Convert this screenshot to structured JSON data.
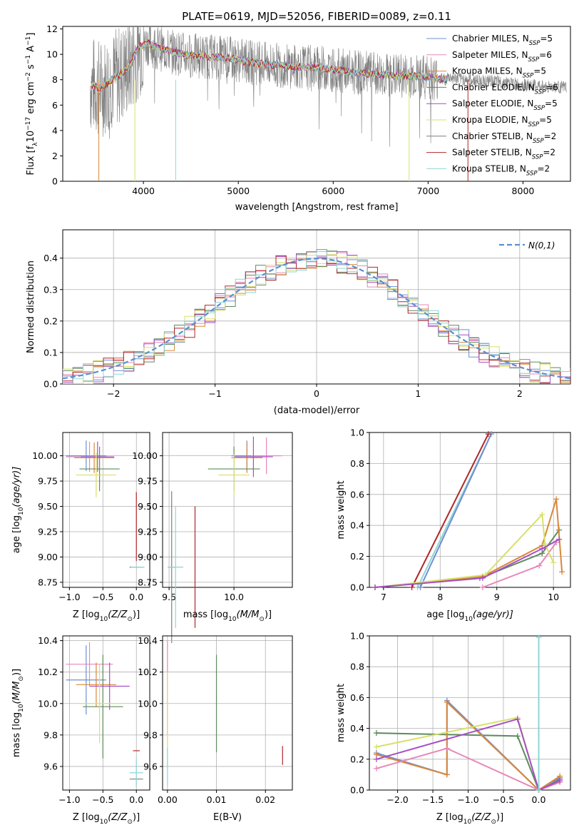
{
  "title": "PLATE=0619, MJD=52056, FIBERID=0089, z=0.11",
  "colors": {
    "blue": "#6f8fd0",
    "pink": "#e887b8",
    "orange": "#d9873a",
    "olive": "#5e8a5e",
    "purple": "#a64fc4",
    "yellow": "#d8e06a",
    "grey": "#7f7f7f",
    "red": "#b0272a",
    "cyan": "#8dd6d6",
    "gauss": "#5b8fd0"
  },
  "legend": [
    {
      "label": "Chabrier MILES, N",
      "sub": "SSP",
      "tail": "=5",
      "color": "#6f8fd0"
    },
    {
      "label": "Salpeter MILES, N",
      "sub": "SSP",
      "tail": "=6",
      "color": "#e887b8"
    },
    {
      "label": "Kroupa MILES, N",
      "sub": "SSP",
      "tail": "=5",
      "color": "#d9873a"
    },
    {
      "label": "Chabrier ELODIE, N",
      "sub": "SSP",
      "tail": "=6",
      "color": "#5e8a5e"
    },
    {
      "label": "Salpeter ELODIE, N",
      "sub": "SSP",
      "tail": "=5",
      "color": "#a64fc4"
    },
    {
      "label": "Kroupa ELODIE, N",
      "sub": "SSP",
      "tail": "=5",
      "color": "#d8e06a"
    },
    {
      "label": "Chabrier STELIB, N",
      "sub": "SSP",
      "tail": "=2",
      "color": "#7f7f7f"
    },
    {
      "label": "Salpeter STELIB, N",
      "sub": "SSP",
      "tail": "=2",
      "color": "#b0272a"
    },
    {
      "label": "Kroupa STELIB, N",
      "sub": "SSP",
      "tail": "=2",
      "color": "#8dd6d6"
    }
  ],
  "chart_data": [
    {
      "type": "line",
      "ylabel_parts": [
        "Flux [f",
        "λ",
        "10",
        "−17",
        " erg cm",
        "−2",
        " s",
        "−1",
        " A",
        "−1",
        "]"
      ],
      "xlabel": "wavelength [Angstrom, rest frame]",
      "xlim": [
        3150,
        8500
      ],
      "ylim": [
        0,
        12.2
      ],
      "xticks": [
        4000,
        5000,
        6000,
        7000,
        8000
      ],
      "yticks": [
        0,
        2,
        4,
        6,
        8,
        10,
        12
      ],
      "model_continuum": {
        "x": [
          3450,
          3550,
          3650,
          3750,
          3850,
          3950,
          4050,
          4150,
          4300,
          4500,
          4700,
          4900,
          5100,
          5300,
          5500,
          5700,
          5900,
          6100,
          6300,
          6500,
          6700,
          6900,
          7100,
          7200
        ],
        "y": [
          7.6,
          7.3,
          7.9,
          8.4,
          9.0,
          10.6,
          10.9,
          10.5,
          10.2,
          9.9,
          9.8,
          9.7,
          9.4,
          9.2,
          9.1,
          9.0,
          8.9,
          8.7,
          8.5,
          8.4,
          8.3,
          8.3,
          8.1,
          8.0
        ]
      },
      "data_continuum": {
        "x": [
          7200,
          7400,
          7600,
          7800,
          8000,
          8200,
          8450
        ],
        "y": [
          8.2,
          8.0,
          7.9,
          7.8,
          7.6,
          7.5,
          7.4
        ]
      }
    },
    {
      "type": "histogram",
      "xlabel": "(data-model)/error",
      "ylabel": "Normed distribution",
      "xlim": [
        -2.5,
        2.5
      ],
      "ylim": [
        0,
        0.49
      ],
      "xticks": [
        -2,
        -1,
        0,
        1,
        2
      ],
      "yticks": [
        0.0,
        0.1,
        0.2,
        0.3,
        0.4
      ],
      "legend_label": "N(0,1)",
      "bin_width": 0.1,
      "reference_curve": "normal(0,1)"
    },
    {
      "type": "errorbar",
      "xlabel_parts": [
        "Z [log",
        "10",
        "(Z/Z",
        "⊙",
        ")]"
      ],
      "ylabel_parts": [
        "age  [log",
        "10",
        "(age/yr)]"
      ],
      "xlim": [
        -1.1,
        0.2
      ],
      "ylim": [
        8.7,
        10.23
      ],
      "xticks": [
        -1.0,
        -0.5,
        0.0
      ],
      "yticks": [
        8.75,
        9.0,
        9.25,
        9.5,
        9.75,
        10.0
      ],
      "points": [
        {
          "x": -0.75,
          "y": 10.0,
          "xerr": 0.3,
          "yerr": 0.15,
          "color": "#6f8fd0"
        },
        {
          "x": -0.7,
          "y": 9.99,
          "xerr": 0.35,
          "yerr": 0.15,
          "color": "#e887b8"
        },
        {
          "x": -0.63,
          "y": 9.98,
          "xerr": 0.3,
          "yerr": 0.15,
          "color": "#d9873a"
        },
        {
          "x": -0.55,
          "y": 9.87,
          "xerr": 0.3,
          "yerr": 0.22,
          "color": "#5e8a5e"
        },
        {
          "x": -0.58,
          "y": 9.99,
          "xerr": 0.25,
          "yerr": 0.15,
          "color": "#a64fc4"
        },
        {
          "x": -0.6,
          "y": 9.81,
          "xerr": 0.3,
          "yerr": 0.22,
          "color": "#d8e06a"
        },
        {
          "x": 0.0,
          "y": 8.9,
          "xerr": 0.1,
          "yerr": 0.0,
          "color": "#7f7f7f"
        },
        {
          "x": 0.0,
          "y": 9.3,
          "xerr": 0.0,
          "yerr": 0.34,
          "color": "#b0272a"
        },
        {
          "x": 0.02,
          "y": 8.9,
          "xerr": 0.1,
          "yerr": 0.0,
          "color": "#8dd6d6"
        }
      ]
    },
    {
      "type": "errorbar",
      "xlabel_parts": [
        "mass [log",
        "10",
        "(M/M",
        "⊙",
        ")]"
      ],
      "ylabel_parts": [
        "",
        "",
        ""
      ],
      "xlim": [
        9.45,
        10.45
      ],
      "ylim": [
        8.7,
        10.23
      ],
      "xticks": [
        9.5,
        10.0
      ],
      "yticks": [
        8.75,
        9.0,
        9.25,
        9.5,
        9.75,
        10.0
      ],
      "points": [
        {
          "x": 10.1,
          "y": 10.0,
          "xerr": 0.12,
          "yerr": 0.15,
          "color": "#6f8fd0"
        },
        {
          "x": 10.25,
          "y": 10.0,
          "xerr": 0.12,
          "yerr": 0.18,
          "color": "#e887b8"
        },
        {
          "x": 10.1,
          "y": 9.98,
          "xerr": 0.12,
          "yerr": 0.15,
          "color": "#d9873a"
        },
        {
          "x": 10.0,
          "y": 9.87,
          "xerr": 0.2,
          "yerr": 0.22,
          "color": "#5e8a5e"
        },
        {
          "x": 10.15,
          "y": 9.99,
          "xerr": 0.15,
          "yerr": 0.2,
          "color": "#a64fc4"
        },
        {
          "x": 10.0,
          "y": 9.81,
          "xerr": 0.12,
          "yerr": 0.2,
          "color": "#d8e06a"
        },
        {
          "x": 9.52,
          "y": 8.9,
          "xerr": 0.03,
          "yerr": 0.75,
          "color": "#7f7f7f"
        },
        {
          "x": 9.7,
          "y": 8.9,
          "xerr": 0.0,
          "yerr": 0.6,
          "color": "#b0272a"
        },
        {
          "x": 9.55,
          "y": 8.9,
          "xerr": 0.06,
          "yerr": 0.6,
          "color": "#8dd6d6"
        }
      ]
    },
    {
      "type": "line",
      "xlabel_parts": [
        "age  [log",
        "10",
        "(age/yr)]"
      ],
      "ylabel": "mass weight",
      "xlim": [
        6.75,
        10.3
      ],
      "ylim": [
        0,
        1.0
      ],
      "xticks": [
        7,
        8,
        9,
        10
      ],
      "yticks": [
        0.0,
        0.2,
        0.4,
        0.6,
        0.8,
        1.0
      ],
      "series": [
        {
          "color": "#8dd6d6",
          "x": [
            7.6,
            8.9
          ],
          "y": [
            0.0,
            0.99
          ]
        },
        {
          "color": "#6f8fd0",
          "x": [
            7.65,
            8.9
          ],
          "y": [
            0.0,
            0.99
          ]
        },
        {
          "color": "#b0272a",
          "x": [
            7.5,
            8.85
          ],
          "y": [
            0.0,
            0.99
          ]
        },
        {
          "color": "#5e8a5e",
          "x": [
            6.85,
            8.7,
            9.8,
            10.1
          ],
          "y": [
            0.0,
            0.06,
            0.22,
            0.37
          ]
        },
        {
          "color": "#d9873a",
          "x": [
            6.85,
            8.75,
            9.8,
            10.05,
            10.15
          ],
          "y": [
            0.0,
            0.07,
            0.27,
            0.57,
            0.1
          ]
        },
        {
          "color": "#e887b8",
          "x": [
            8.75,
            9.75,
            10.05
          ],
          "y": [
            0.0,
            0.14,
            0.29
          ]
        },
        {
          "color": "#d8e06a",
          "x": [
            6.85,
            8.8,
            9.8,
            9.85,
            10.0
          ],
          "y": [
            0.0,
            0.08,
            0.47,
            0.28,
            0.16
          ]
        },
        {
          "color": "#a64fc4",
          "x": [
            6.85,
            8.75,
            9.8,
            10.1
          ],
          "y": [
            0.0,
            0.06,
            0.25,
            0.31
          ]
        }
      ]
    },
    {
      "type": "errorbar",
      "xlabel_parts": [
        "Z [log",
        "10",
        "(Z/Z",
        "⊙",
        ")]"
      ],
      "ylabel_parts": [
        "mass [log",
        "10",
        "(M/M",
        "⊙",
        ")]"
      ],
      "xlim": [
        -1.1,
        0.2
      ],
      "ylim": [
        9.45,
        10.43
      ],
      "xticks": [
        -1.0,
        -0.5,
        0.0
      ],
      "yticks": [
        9.6,
        9.8,
        10.0,
        10.2,
        10.4
      ],
      "points": [
        {
          "x": -0.75,
          "y": 10.15,
          "xerr": 0.3,
          "yerr": 0.22,
          "color": "#6f8fd0"
        },
        {
          "x": -0.7,
          "y": 10.25,
          "xerr": 0.35,
          "yerr": 0.14,
          "color": "#e887b8"
        },
        {
          "x": -0.6,
          "y": 10.12,
          "xerr": 0.3,
          "yerr": 0.14,
          "color": "#d9873a"
        },
        {
          "x": -0.5,
          "y": 9.98,
          "xerr": 0.3,
          "yerr": 0.33,
          "color": "#5e8a5e"
        },
        {
          "x": -0.4,
          "y": 10.11,
          "xerr": 0.3,
          "yerr": 0.15,
          "color": "#a64fc4"
        },
        {
          "x": -0.55,
          "y": 10.0,
          "xerr": 0.3,
          "yerr": 0.25,
          "color": "#d8e06a"
        },
        {
          "x": 0.0,
          "y": 9.52,
          "xerr": 0.1,
          "yerr": 0.0,
          "color": "#7f7f7f"
        },
        {
          "x": 0.0,
          "y": 9.7,
          "xerr": 0.05,
          "yerr": 0.0,
          "color": "#b0272a"
        },
        {
          "x": 0.0,
          "y": 9.56,
          "xerr": 0.1,
          "yerr": 0.09,
          "color": "#8dd6d6"
        }
      ]
    },
    {
      "type": "errorbar",
      "xlabel": "E(B-V)",
      "ylabel_parts": [
        "",
        "",
        ""
      ],
      "xlim": [
        -0.001,
        0.0255
      ],
      "ylim": [
        9.45,
        10.43
      ],
      "xticks": [
        0.0,
        0.01,
        0.02
      ],
      "yticks": [
        9.6,
        9.8,
        10.0,
        10.2,
        10.4
      ],
      "points": [
        {
          "x": 0.0,
          "y": 10.1,
          "yerr": 0.3,
          "color": "#e887b8"
        },
        {
          "x": 0.0,
          "y": 9.9,
          "yerr": 0.3,
          "color": "#d8e06a"
        },
        {
          "x": 0.0,
          "y": 9.6,
          "yerr": 0.12,
          "color": "#8dd6d6"
        },
        {
          "x": 0.01,
          "y": 10.0,
          "yerr": 0.31,
          "color": "#5e8a5e"
        },
        {
          "x": 0.0235,
          "y": 9.67,
          "yerr": 0.06,
          "color": "#b0272a"
        }
      ]
    },
    {
      "type": "line",
      "xlabel_parts": [
        "Z [log",
        "10",
        "(Z/Z",
        "⊙",
        ")]"
      ],
      "ylabel": "mass weight",
      "xlim": [
        -2.4,
        0.45
      ],
      "ylim": [
        0,
        1.0
      ],
      "xticks": [
        -2.0,
        -1.5,
        -1.0,
        -0.5,
        0.0
      ],
      "yticks": [
        0.0,
        0.2,
        0.4,
        0.6,
        0.8,
        1.0
      ],
      "series": [
        {
          "color": "#5e8a5e",
          "x": [
            -2.3,
            -0.3,
            0.0,
            0.3
          ],
          "y": [
            0.37,
            0.35,
            0.0,
            0.07
          ]
        },
        {
          "color": "#6f8fd0",
          "x": [
            -2.3,
            -1.3,
            -1.3,
            0.0,
            0.3
          ],
          "y": [
            0.24,
            0.1,
            0.58,
            0.0,
            0.08
          ]
        },
        {
          "color": "#d9873a",
          "x": [
            -2.3,
            -1.3,
            -1.3,
            0.0,
            0.3
          ],
          "y": [
            0.23,
            0.1,
            0.57,
            0.0,
            0.09
          ]
        },
        {
          "color": "#e887b8",
          "x": [
            -2.3,
            -1.3,
            0.0,
            0.3
          ],
          "y": [
            0.14,
            0.27,
            0.0,
            0.05
          ]
        },
        {
          "color": "#d8e06a",
          "x": [
            -2.3,
            -0.3,
            0.0
          ],
          "y": [
            0.28,
            0.47,
            0.0
          ]
        },
        {
          "color": "#a64fc4",
          "x": [
            -2.3,
            -0.3,
            0.0,
            0.3
          ],
          "y": [
            0.2,
            0.46,
            0.0,
            0.06
          ]
        },
        {
          "color": "#8dd6d6",
          "x": [
            0.0,
            0.0
          ],
          "y": [
            0.0,
            0.99
          ]
        }
      ]
    }
  ]
}
